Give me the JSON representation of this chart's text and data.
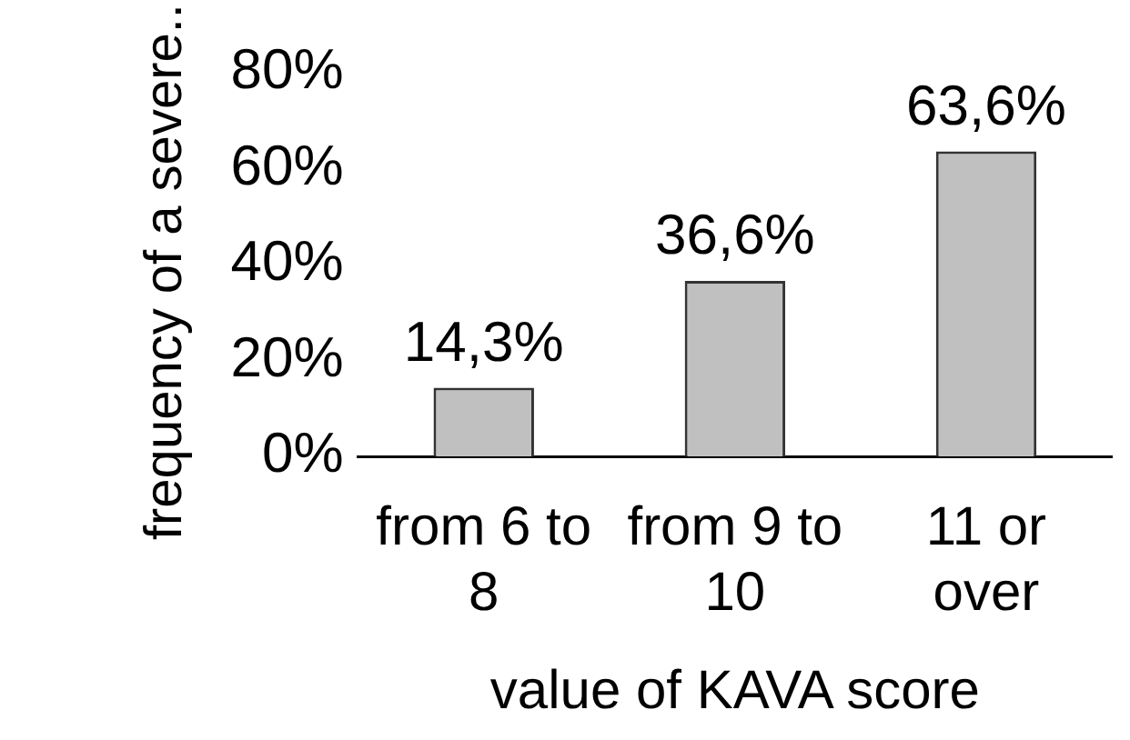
{
  "chart_data": {
    "type": "bar",
    "xlabel": "value of KAVA score",
    "ylabel": "frequency of a severe...",
    "categories": [
      "from 6 to 8",
      "from 9 to 10",
      "11 or over"
    ],
    "values": [
      14.3,
      36.6,
      63.6
    ],
    "color": "#c0c0c0",
    "value_labels": [
      "14,3%",
      "36,6%",
      "63,6%"
    ],
    "ylim": [
      0,
      80
    ],
    "yticks": [
      {
        "value": 0,
        "label": "0%"
      },
      {
        "value": 20,
        "label": "20%"
      },
      {
        "value": 40,
        "label": "40%"
      },
      {
        "value": 60,
        "label": "60%"
      },
      {
        "value": 80,
        "label": "80%"
      }
    ],
    "grid": false,
    "legend": false
  }
}
